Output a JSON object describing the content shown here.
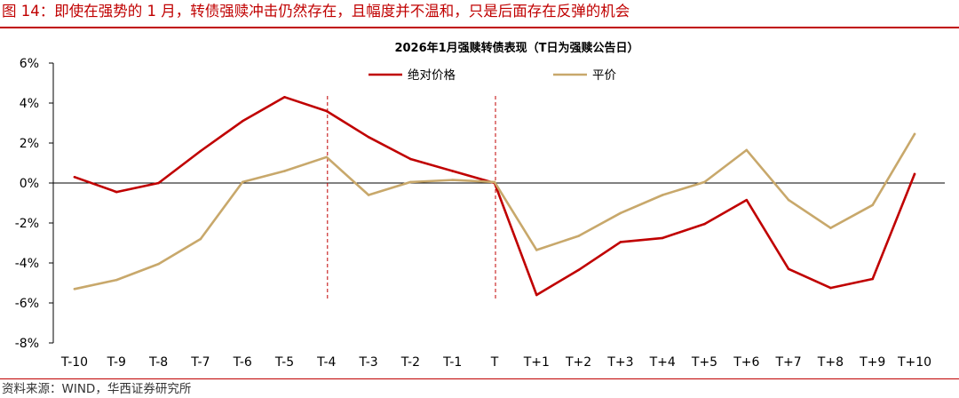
{
  "figure_title": "图 14：即使在强势的 1 月，转债强赎冲击仍然存在，且幅度并不温和，只是后面存在反弹的机会",
  "source": "资料来源：WIND，华西证券研究所",
  "colors": {
    "accent": "#c00000",
    "series_1": "#c00000",
    "series_2": "#c8a86b"
  },
  "chart_data": {
    "type": "line",
    "title": "2026年1月强赎转债表现（T日为强赎公告日）",
    "xlabel": "",
    "ylabel": "",
    "categories": [
      "T-10",
      "T-9",
      "T-8",
      "T-7",
      "T-6",
      "T-5",
      "T-4",
      "T-3",
      "T-2",
      "T-1",
      "T",
      "T+1",
      "T+2",
      "T+3",
      "T+4",
      "T+5",
      "T+6",
      "T+7",
      "T+8",
      "T+9",
      "T+10"
    ],
    "ylim": [
      -8,
      6
    ],
    "yticks": [
      "6%",
      "4%",
      "2%",
      "0%",
      "-2%",
      "-4%",
      "-6%",
      "-8%"
    ],
    "ytick_values": [
      6,
      4,
      2,
      0,
      -2,
      -4,
      -6,
      -8
    ],
    "legend_position": "top-center",
    "grid": false,
    "reference_lines_at": [
      "T-4",
      "T"
    ],
    "series": [
      {
        "name": "绝对价格",
        "color": "#c00000",
        "values": [
          0.3,
          -0.45,
          0.0,
          1.6,
          3.1,
          4.3,
          3.6,
          2.3,
          1.2,
          0.6,
          0.0,
          -5.6,
          -4.35,
          -2.95,
          -2.75,
          -2.05,
          -0.85,
          -4.3,
          -5.25,
          -4.8,
          0.45
        ]
      },
      {
        "name": "平价",
        "color": "#c8a86b",
        "values": [
          -5.3,
          -4.85,
          -4.05,
          -2.8,
          0.05,
          0.6,
          1.3,
          -0.6,
          0.05,
          0.15,
          0.05,
          -3.35,
          -2.65,
          -1.5,
          -0.6,
          0.05,
          1.65,
          -0.85,
          -2.25,
          -1.1,
          2.45
        ]
      }
    ]
  }
}
